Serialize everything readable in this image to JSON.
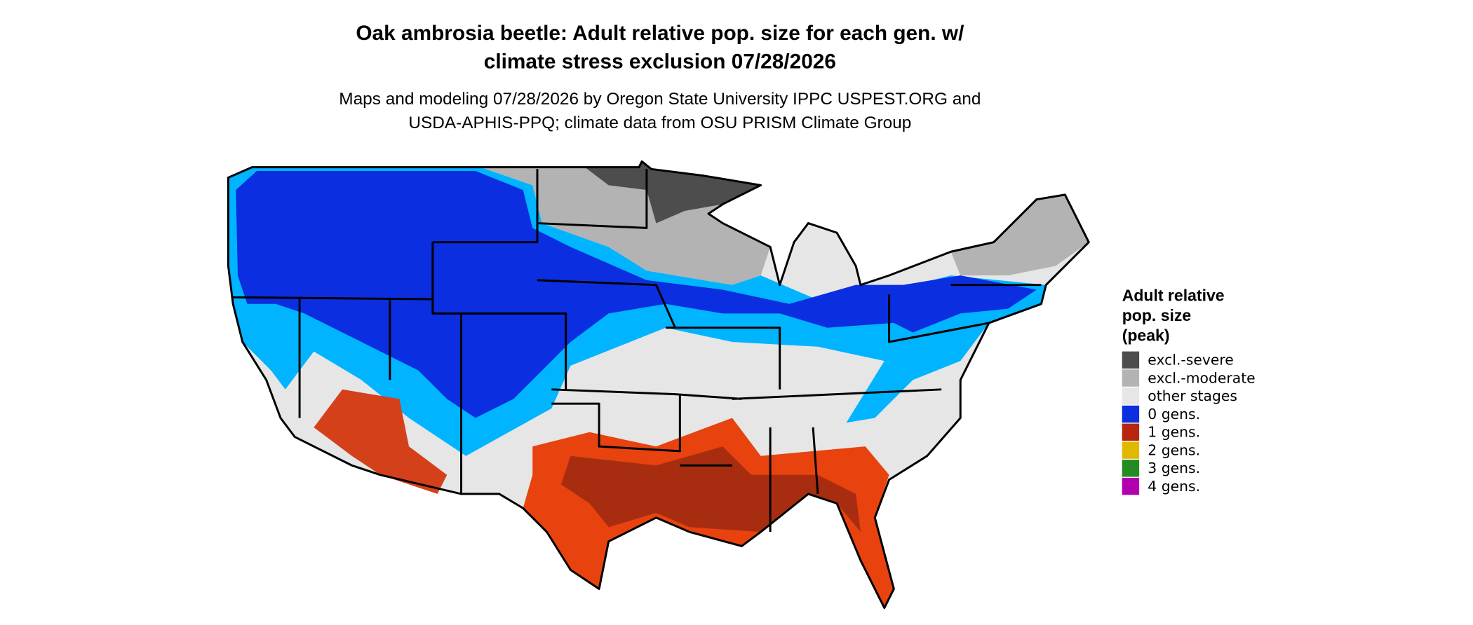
{
  "title": [
    "Oak ambrosia beetle: Adult relative pop. size for each gen. w/",
    "climate stress exclusion 07/28/2026"
  ],
  "subtitle": [
    "Maps and modeling 07/28/2026 by Oregon State University IPPC USPEST.ORG and",
    "USDA-APHIS-PPQ; climate data from OSU PRISM Climate Group"
  ],
  "legend": {
    "title": [
      "Adult relative",
      "pop. size",
      "(peak)"
    ],
    "items": [
      {
        "label": "excl.-severe",
        "color": "#4d4d4d"
      },
      {
        "label": "excl.-moderate",
        "color": "#b3b3b3"
      },
      {
        "label": "other stages",
        "color": "#e6e6e6"
      },
      {
        "label": "0 gens.",
        "color": "#0a2ee0"
      },
      {
        "label": "1 gens.",
        "color": "#b8260f"
      },
      {
        "label": "2 gens.",
        "color": "#e0b800"
      },
      {
        "label": "3 gens.",
        "color": "#228b22"
      },
      {
        "label": "4 gens.",
        "color": "#b000b0"
      }
    ]
  }
}
